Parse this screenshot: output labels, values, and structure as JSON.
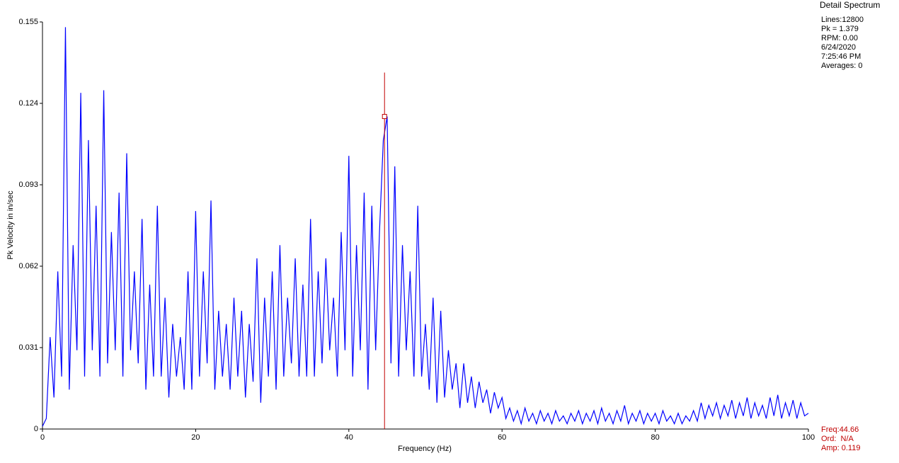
{
  "chart_data": {
    "type": "line",
    "title": "Detail Spectrum",
    "info": [
      "Lines:12800",
      "Pk = 1.379",
      "RPM: 0.00",
      "6/24/2020",
      "7:25:46 PM",
      "Averages: 0"
    ],
    "x_label": "Frequency (Hz)",
    "y_label": "Pk Velocity in in/sec",
    "xlim": [
      0,
      100
    ],
    "xticks": [
      0,
      20,
      40,
      60,
      80,
      100
    ],
    "ylim": [
      0,
      0.155
    ],
    "yticks": [
      0,
      0.031,
      0.062,
      0.093,
      0.124,
      0.155
    ],
    "grid": false,
    "cursor": {
      "freq_label": "Freq:",
      "freq": 44.66,
      "ord": "Ord:  N/A",
      "amp_label": "Amp: ",
      "amp": 0.119,
      "color": "#c00000"
    },
    "x": [
      0,
      0.5,
      1,
      1.5,
      2,
      2.5,
      3,
      3.5,
      4,
      4.5,
      5,
      5.5,
      6,
      6.5,
      7,
      7.5,
      8,
      8.5,
      9,
      9.5,
      10,
      10.5,
      11,
      11.5,
      12,
      12.5,
      13,
      13.5,
      14,
      14.5,
      15,
      15.5,
      16,
      16.5,
      17,
      17.5,
      18,
      18.5,
      19,
      19.5,
      20,
      20.5,
      21,
      21.5,
      22,
      22.5,
      23,
      23.5,
      24,
      24.5,
      25,
      25.5,
      26,
      26.5,
      27,
      27.5,
      28,
      28.5,
      29,
      29.5,
      30,
      30.5,
      31,
      31.5,
      32,
      32.5,
      33,
      33.5,
      34,
      34.5,
      35,
      35.5,
      36,
      36.5,
      37,
      37.5,
      38,
      38.5,
      39,
      39.5,
      40,
      40.5,
      41,
      41.5,
      42,
      42.5,
      43,
      43.5,
      44,
      44.5,
      45,
      45.5,
      46,
      46.5,
      47,
      47.5,
      48,
      48.5,
      49,
      49.5,
      50,
      50.5,
      51,
      51.5,
      52,
      52.5,
      53,
      53.5,
      54,
      54.5,
      55,
      55.5,
      56,
      56.5,
      57,
      57.5,
      58,
      58.5,
      59,
      59.5,
      60,
      60.5,
      61,
      61.5,
      62,
      62.5,
      63,
      63.5,
      64,
      64.5,
      65,
      65.5,
      66,
      66.5,
      67,
      67.5,
      68,
      68.5,
      69,
      69.5,
      70,
      70.5,
      71,
      71.5,
      72,
      72.5,
      73,
      73.5,
      74,
      74.5,
      75,
      75.5,
      76,
      76.5,
      77,
      77.5,
      78,
      78.5,
      79,
      79.5,
      80,
      80.5,
      81,
      81.5,
      82,
      82.5,
      83,
      83.5,
      84,
      84.5,
      85,
      85.5,
      86,
      86.5,
      87,
      87.5,
      88,
      88.5,
      89,
      89.5,
      90,
      90.5,
      91,
      91.5,
      92,
      92.5,
      93,
      93.5,
      94,
      94.5,
      95,
      95.5,
      96,
      96.5,
      97,
      97.5,
      98,
      98.5,
      99,
      99.5,
      100
    ],
    "series": [
      {
        "color": "#0000ff",
        "values": [
          0.001,
          0.004,
          0.035,
          0.012,
          0.06,
          0.02,
          0.153,
          0.015,
          0.07,
          0.03,
          0.128,
          0.02,
          0.11,
          0.03,
          0.085,
          0.02,
          0.129,
          0.025,
          0.075,
          0.03,
          0.09,
          0.02,
          0.105,
          0.03,
          0.06,
          0.025,
          0.08,
          0.015,
          0.055,
          0.02,
          0.085,
          0.02,
          0.05,
          0.012,
          0.04,
          0.02,
          0.035,
          0.015,
          0.06,
          0.015,
          0.083,
          0.02,
          0.06,
          0.025,
          0.087,
          0.015,
          0.045,
          0.02,
          0.04,
          0.015,
          0.05,
          0.02,
          0.045,
          0.012,
          0.04,
          0.018,
          0.065,
          0.01,
          0.05,
          0.02,
          0.06,
          0.015,
          0.07,
          0.02,
          0.05,
          0.025,
          0.065,
          0.02,
          0.055,
          0.02,
          0.08,
          0.02,
          0.06,
          0.025,
          0.065,
          0.03,
          0.05,
          0.02,
          0.075,
          0.03,
          0.104,
          0.02,
          0.07,
          0.03,
          0.09,
          0.015,
          0.085,
          0.03,
          0.075,
          0.11,
          0.119,
          0.025,
          0.1,
          0.02,
          0.07,
          0.03,
          0.06,
          0.02,
          0.085,
          0.02,
          0.04,
          0.015,
          0.05,
          0.01,
          0.045,
          0.012,
          0.03,
          0.015,
          0.025,
          0.008,
          0.025,
          0.01,
          0.02,
          0.008,
          0.018,
          0.01,
          0.015,
          0.006,
          0.014,
          0.008,
          0.012,
          0.004,
          0.008,
          0.003,
          0.007,
          0.002,
          0.008,
          0.003,
          0.006,
          0.002,
          0.007,
          0.003,
          0.006,
          0.002,
          0.007,
          0.003,
          0.005,
          0.002,
          0.006,
          0.003,
          0.007,
          0.002,
          0.006,
          0.003,
          0.007,
          0.002,
          0.008,
          0.003,
          0.006,
          0.002,
          0.007,
          0.003,
          0.009,
          0.002,
          0.006,
          0.003,
          0.007,
          0.002,
          0.006,
          0.003,
          0.006,
          0.002,
          0.007,
          0.003,
          0.005,
          0.002,
          0.006,
          0.002,
          0.005,
          0.003,
          0.007,
          0.003,
          0.01,
          0.004,
          0.009,
          0.005,
          0.01,
          0.004,
          0.009,
          0.005,
          0.011,
          0.004,
          0.01,
          0.005,
          0.012,
          0.004,
          0.01,
          0.005,
          0.009,
          0.004,
          0.012,
          0.005,
          0.013,
          0.004,
          0.01,
          0.005,
          0.011,
          0.004,
          0.01,
          0.005,
          0.006
        ]
      }
    ]
  }
}
